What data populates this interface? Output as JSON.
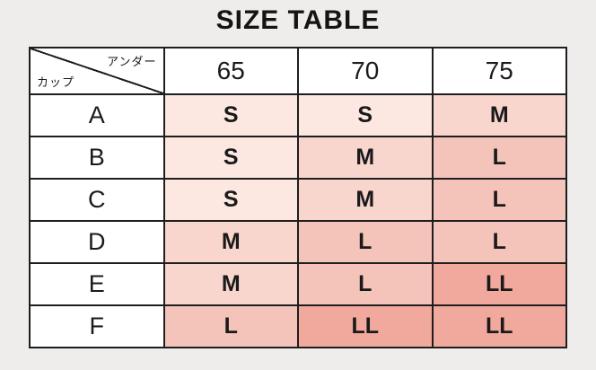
{
  "title": "SIZE TABLE",
  "table": {
    "corner": {
      "top_label": "アンダー",
      "bottom_label": "カップ"
    },
    "columns": [
      "65",
      "70",
      "75"
    ],
    "rows": [
      {
        "cup": "A",
        "sizes": [
          "S",
          "S",
          "M"
        ]
      },
      {
        "cup": "B",
        "sizes": [
          "S",
          "M",
          "L"
        ]
      },
      {
        "cup": "C",
        "sizes": [
          "S",
          "M",
          "L"
        ]
      },
      {
        "cup": "D",
        "sizes": [
          "M",
          "L",
          "L"
        ]
      },
      {
        "cup": "E",
        "sizes": [
          "M",
          "L",
          "LL"
        ]
      },
      {
        "cup": "F",
        "sizes": [
          "L",
          "LL",
          "LL"
        ]
      }
    ]
  },
  "size_colors": {
    "S": "#fce8e0",
    "M": "#f8d5cd",
    "L": "#f4c4bb",
    "LL": "#f1a89d"
  },
  "colors": {
    "page_background": "#efedeb",
    "cell_background": "#ffffff",
    "border": "#1e1e1e",
    "text": "#1a1a1a"
  },
  "chart_data": {
    "type": "table",
    "title": "SIZE TABLE",
    "column_header_label": "アンダー",
    "row_header_label": "カップ",
    "columns": [
      "65",
      "70",
      "75"
    ],
    "rows": [
      {
        "cup": "A",
        "sizes": [
          "S",
          "S",
          "M"
        ]
      },
      {
        "cup": "B",
        "sizes": [
          "S",
          "M",
          "L"
        ]
      },
      {
        "cup": "C",
        "sizes": [
          "S",
          "M",
          "L"
        ]
      },
      {
        "cup": "D",
        "sizes": [
          "M",
          "L",
          "L"
        ]
      },
      {
        "cup": "E",
        "sizes": [
          "M",
          "L",
          "LL"
        ]
      },
      {
        "cup": "F",
        "sizes": [
          "L",
          "LL",
          "LL"
        ]
      }
    ],
    "legend": "cell shading darkens with size: S lightest, LL darkest"
  }
}
